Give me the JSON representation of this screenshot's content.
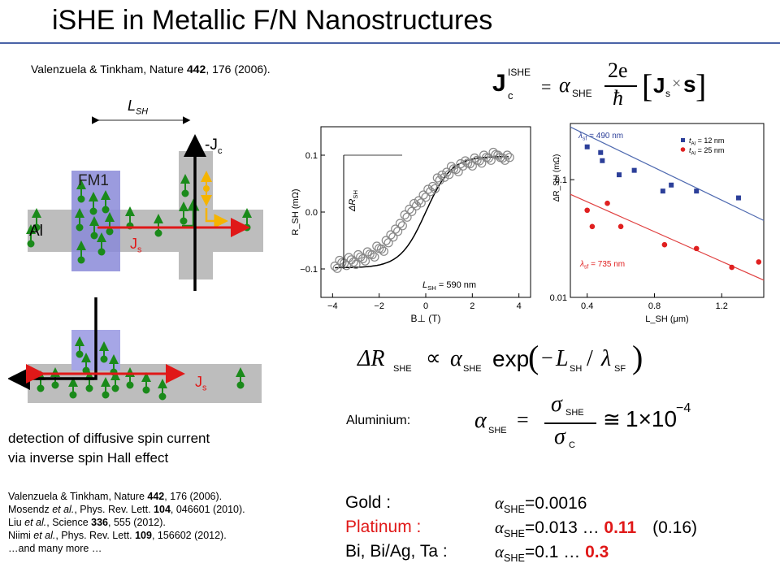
{
  "slide": {
    "title": "iSHE in Metallic F/N Nanostructures",
    "top_reference": {
      "pre": "Valenzuela & Tinkham, Nature ",
      "bold": "442",
      "post": ", 176 (2006)."
    }
  },
  "device_top": {
    "lsh_label": "L",
    "lsh_sub": "SH",
    "jc_label": "-J",
    "jc_sub": "c",
    "fm1_label": "FM1",
    "al_label": "Al",
    "js_label": "J",
    "js_sub": "s"
  },
  "device_bottom": {
    "js_label": "J",
    "js_sub": "s"
  },
  "description": {
    "line1": "detection of diffusive spin current",
    "line2": "via inverse spin Hall effect"
  },
  "references": [
    {
      "pre": "Valenzuela & Tinkham, Nature ",
      "bold": "442",
      "post": ", 176 (2006)."
    },
    {
      "pre": "Mosendz ",
      "italic": "et al.",
      "mid": ", Phys. Rev. Lett. ",
      "bold": "104",
      "post": ", 046601 (2010)."
    },
    {
      "pre": "Liu ",
      "italic": "et al.",
      "mid": ", Science ",
      "bold": "336",
      "post": ", 555 (2012)."
    },
    {
      "pre": "Niimi ",
      "italic": "et al.",
      "mid": ", Phys. Rev. Lett. ",
      "bold": "109",
      "post": ", 156602 (2012)."
    },
    {
      "pre": "…and many more …"
    }
  ],
  "equations": {
    "jishe": {
      "J": "J",
      "sup": "ISHE",
      "sub": "c",
      "alpha": "α",
      "alpha_sub": "SHE",
      "num": "2e",
      "den": "ħ",
      "Js": "J",
      "Js_sub": "s",
      "times": "×",
      "s": "s"
    },
    "resistance": {
      "delta": "ΔR",
      "sub": "SHE",
      "prop": "∝",
      "alpha": "α",
      "alpha_sub": "SHE",
      "exp": "exp",
      "minus": "−",
      "L": "L",
      "L_sub": "SH",
      "slash": "/",
      "lambda": "λ",
      "lambda_sub": "SF"
    },
    "aluminium": {
      "label": "Aluminium:",
      "alpha": "α",
      "alpha_sub": "SHE",
      "sigma": "σ",
      "sigma_num_sub": "SHE",
      "sigma_den_sub": "C",
      "approx": "≅",
      "value": "1×10",
      "exp": "−4"
    }
  },
  "materials": [
    {
      "name": "Gold :",
      "alpha": "α",
      "sub": "SHE",
      "value": "=0.0016",
      "highlight": "",
      "extra": ""
    },
    {
      "name": "Platinum :",
      "alpha": "α",
      "sub": "SHE",
      "value": "=0.013 … ",
      "highlight": "0.11",
      "extra": "(0.16)"
    },
    {
      "name": "Bi, Bi/Ag, Ta :",
      "alpha": "α",
      "sub": "SHE",
      "value": "=0.1 … ",
      "highlight": "0.3",
      "extra": ""
    }
  ],
  "chart_data": [
    {
      "type": "scatter",
      "title": "",
      "xlabel": "B⊥ (T)",
      "ylabel": "R_SH (mΩ)",
      "xlim": [
        -4.5,
        4.5
      ],
      "ylim": [
        -0.15,
        0.15
      ],
      "xticks": [
        "−4",
        "−2",
        "0",
        "2",
        "4"
      ],
      "yticks": [
        "0.1",
        "0.0",
        "−0.1"
      ],
      "annotations": {
        "delta": "ΔR",
        "delta_sub": "SH",
        "lsh": "L",
        "lsh_sub": "SH",
        "lsh_value": " = 590 nm"
      },
      "series": [
        {
          "name": "",
          "x": [
            -3.9,
            -3.7,
            -3.5,
            -3.3,
            -3.1,
            -2.9,
            -2.7,
            -2.5,
            -2.3,
            -2.1,
            -1.9,
            -1.7,
            -1.5,
            -1.3,
            -1.1,
            -0.9,
            -0.7,
            -0.5,
            -0.3,
            -0.1,
            0.1,
            0.3,
            0.5,
            0.7,
            0.9,
            1.1,
            1.3,
            1.5,
            1.7,
            1.9,
            2.1,
            2.3,
            2.5,
            2.7,
            2.9,
            3.1,
            3.3,
            3.5
          ],
          "y": [
            -0.095,
            -0.085,
            -0.09,
            -0.08,
            -0.088,
            -0.075,
            -0.082,
            -0.07,
            -0.075,
            -0.06,
            -0.065,
            -0.05,
            -0.04,
            -0.03,
            -0.02,
            -0.005,
            0.005,
            0.015,
            0.02,
            0.03,
            0.04,
            0.045,
            0.06,
            0.065,
            0.07,
            0.08,
            0.075,
            0.085,
            0.09,
            0.085,
            0.095,
            0.09,
            0.1,
            0.095,
            0.105,
            0.1,
            0.095,
            0.1
          ]
        }
      ]
    },
    {
      "type": "scatter",
      "title": "",
      "xlabel": "L_SH (μm)",
      "ylabel": "ΔR_SH (mΩ)",
      "log_y": true,
      "xlim": [
        0.3,
        1.45
      ],
      "ylim": [
        0.01,
        0.3
      ],
      "xticks": [
        "0.4",
        "0.8",
        "1.2"
      ],
      "yticks": [
        "0.1",
        "0.01"
      ],
      "annotations": {
        "lambda_blue": "λ",
        "lambda_blue_sub": "sf",
        "lambda_blue_value": " = 490 nm",
        "lambda_red": "λ",
        "lambda_red_sub": "sf",
        "lambda_red_value": " = 735 nm"
      },
      "series": [
        {
          "name": "t_Al = 12 nm",
          "legend": "t",
          "legend_sub": "Al",
          "legend_value": " = 12 nm",
          "color": "#2c3f99",
          "x": [
            0.4,
            0.48,
            0.49,
            0.59,
            0.68,
            0.85,
            0.9,
            1.05,
            1.3
          ],
          "y": [
            0.19,
            0.17,
            0.145,
            0.11,
            0.12,
            0.08,
            0.09,
            0.08,
            0.07
          ]
        },
        {
          "name": "t_Al = 25 nm",
          "legend": "t",
          "legend_sub": "Al",
          "legend_value": " = 25 nm",
          "color": "#e02020",
          "x": [
            0.4,
            0.43,
            0.52,
            0.6,
            0.86,
            1.05,
            1.26,
            1.42
          ],
          "y": [
            0.055,
            0.04,
            0.063,
            0.04,
            0.028,
            0.026,
            0.018,
            0.02
          ]
        }
      ]
    }
  ]
}
